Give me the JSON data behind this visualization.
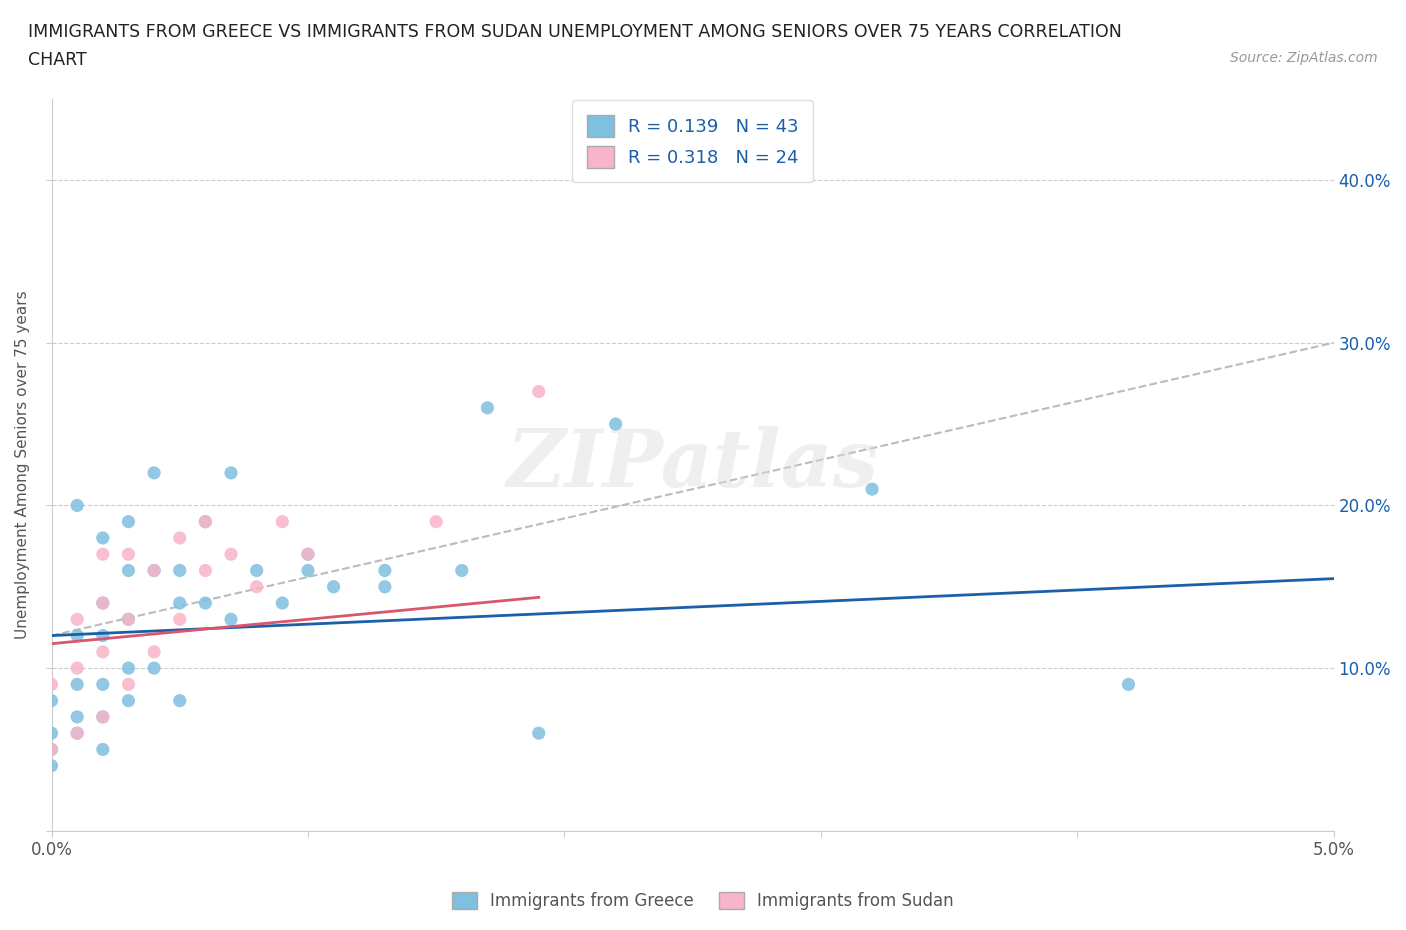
{
  "title_line1": "IMMIGRANTS FROM GREECE VS IMMIGRANTS FROM SUDAN UNEMPLOYMENT AMONG SENIORS OVER 75 YEARS CORRELATION",
  "title_line2": "CHART",
  "source": "Source: ZipAtlas.com",
  "ylabel": "Unemployment Among Seniors over 75 years",
  "xlim": [
    0.0,
    0.05
  ],
  "ylim": [
    0.0,
    0.45
  ],
  "xticks": [
    0.0,
    0.01,
    0.02,
    0.03,
    0.04,
    0.05
  ],
  "xticklabels": [
    "0.0%",
    "",
    "",
    "",
    "",
    "5.0%"
  ],
  "ytick_positions": [
    0.0,
    0.1,
    0.2,
    0.3,
    0.4
  ],
  "yticklabels": [
    "",
    "10.0%",
    "20.0%",
    "30.0%",
    "40.0%"
  ],
  "greece_color": "#7fbfdf",
  "sudan_color": "#f8b4c8",
  "greece_line_color": "#1a5fa8",
  "sudan_line_color": "#d9566e",
  "R_greece": 0.139,
  "N_greece": 43,
  "R_sudan": 0.318,
  "N_sudan": 24,
  "watermark": "ZIPatlas",
  "greece_trendline": [
    0.12,
    0.155
  ],
  "sudan_trendline": [
    0.115,
    0.19
  ],
  "dashed_trendline": [
    0.12,
    0.3
  ],
  "dashed_trendline_xmax": 0.05,
  "greece_scatter_x": [
    0.0,
    0.0,
    0.0,
    0.0,
    0.001,
    0.001,
    0.001,
    0.001,
    0.001,
    0.002,
    0.002,
    0.002,
    0.002,
    0.002,
    0.002,
    0.003,
    0.003,
    0.003,
    0.003,
    0.003,
    0.004,
    0.004,
    0.004,
    0.005,
    0.005,
    0.005,
    0.006,
    0.006,
    0.007,
    0.007,
    0.008,
    0.009,
    0.01,
    0.01,
    0.011,
    0.013,
    0.013,
    0.016,
    0.017,
    0.019,
    0.022,
    0.032,
    0.042
  ],
  "greece_scatter_y": [
    0.04,
    0.05,
    0.06,
    0.08,
    0.06,
    0.07,
    0.09,
    0.12,
    0.2,
    0.05,
    0.07,
    0.09,
    0.12,
    0.14,
    0.18,
    0.08,
    0.1,
    0.13,
    0.16,
    0.19,
    0.1,
    0.16,
    0.22,
    0.08,
    0.14,
    0.16,
    0.14,
    0.19,
    0.13,
    0.22,
    0.16,
    0.14,
    0.16,
    0.17,
    0.15,
    0.15,
    0.16,
    0.16,
    0.26,
    0.06,
    0.25,
    0.21,
    0.09
  ],
  "sudan_scatter_x": [
    0.0,
    0.0,
    0.001,
    0.001,
    0.001,
    0.002,
    0.002,
    0.002,
    0.002,
    0.003,
    0.003,
    0.003,
    0.004,
    0.004,
    0.005,
    0.005,
    0.006,
    0.006,
    0.007,
    0.008,
    0.009,
    0.01,
    0.015,
    0.019
  ],
  "sudan_scatter_y": [
    0.05,
    0.09,
    0.06,
    0.1,
    0.13,
    0.07,
    0.11,
    0.14,
    0.17,
    0.09,
    0.13,
    0.17,
    0.11,
    0.16,
    0.13,
    0.18,
    0.16,
    0.19,
    0.17,
    0.15,
    0.19,
    0.17,
    0.19,
    0.27
  ]
}
